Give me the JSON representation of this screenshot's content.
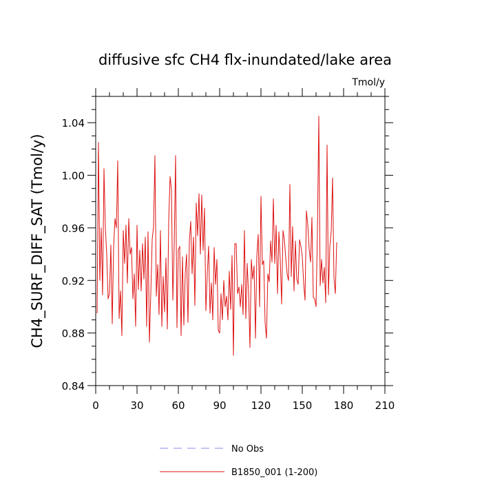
{
  "chart_data": {
    "type": "line",
    "title": "diffusive sfc CH4 flx-inundated/lake area",
    "units_label": "Tmol/y",
    "ylabel": "CH4_SURF_DIFF_SAT  (Tmol/y)",
    "xlabel": "",
    "xlim": [
      0,
      210
    ],
    "ylim": [
      0.84,
      1.06
    ],
    "x_ticks": [
      0,
      30,
      60,
      90,
      120,
      150,
      180,
      210
    ],
    "x_tick_labels": [
      "0",
      "30",
      "60",
      "90",
      "120",
      "150",
      "180",
      "210"
    ],
    "y_ticks": [
      0.84,
      0.88,
      0.92,
      0.96,
      1.0,
      1.04
    ],
    "y_tick_labels": [
      "0.84",
      "0.88",
      "0.92",
      "0.96",
      "1.00",
      "1.04"
    ],
    "grid": false,
    "legend": {
      "placement": "bottom",
      "entries": [
        {
          "label": "No Obs",
          "color": "#8888ee",
          "dash": true
        },
        {
          "label": "B1850_001 (1-200)",
          "color": "#dd1111",
          "dash": false
        }
      ]
    },
    "series": [
      {
        "name": "B1850_001 (1-200)",
        "color": "#dd1111",
        "x_start": 1,
        "values": [
          0.895,
          1.025,
          0.92,
          0.96,
          0.909,
          1.005,
          0.96,
          0.94,
          0.906,
          0.91,
          0.947,
          0.887,
          0.945,
          0.967,
          0.96,
          1.011,
          0.891,
          0.912,
          0.878,
          0.958,
          0.933,
          0.962,
          0.918,
          0.967,
          0.94,
          0.945,
          0.906,
          0.925,
          0.885,
          0.962,
          0.913,
          0.943,
          0.912,
          0.948,
          0.921,
          0.953,
          0.885,
          0.957,
          0.873,
          0.91,
          0.951,
          0.961,
          1.015,
          0.908,
          0.932,
          0.894,
          0.958,
          0.885,
          0.923,
          0.896,
          0.937,
          0.883,
          0.965,
          0.999,
          0.989,
          0.905,
          0.947,
          1.015,
          0.884,
          0.943,
          0.946,
          0.878,
          0.938,
          0.886,
          0.925,
          0.94,
          0.888,
          0.95,
          0.965,
          0.925,
          0.953,
          0.901,
          0.979,
          0.954,
          0.986,
          0.94,
          0.985,
          0.943,
          0.975,
          0.897,
          0.925,
          0.946,
          0.895,
          0.918,
          0.89,
          0.945,
          0.917,
          0.936,
          0.882,
          0.88,
          0.91,
          0.89,
          0.92,
          0.9,
          0.908,
          0.89,
          0.927,
          0.898,
          0.939,
          0.863,
          0.948,
          0.948,
          0.91,
          0.915,
          0.9,
          0.917,
          0.894,
          0.958,
          0.891,
          0.933,
          0.91,
          0.869,
          0.936,
          0.921,
          0.931,
          0.876,
          0.939,
          0.955,
          0.9,
          0.984,
          0.932,
          0.935,
          0.888,
          0.876,
          0.925,
          0.919,
          0.95,
          0.934,
          0.982,
          0.933,
          0.962,
          0.91,
          0.957,
          0.936,
          0.902,
          0.958,
          0.951,
          0.937,
          0.925,
          0.92,
          0.993,
          0.923,
          0.961,
          0.912,
          0.95,
          0.921,
          0.917,
          0.951,
          0.946,
          0.938,
          0.918,
          0.905,
          0.973,
          0.962,
          0.944,
          0.934,
          0.968,
          0.907,
          0.906,
          0.9,
          0.957,
          1.045,
          0.916,
          0.936,
          0.918,
          0.93,
          0.903,
          1.023,
          0.909,
          0.946,
          0.957,
          0.998,
          0.922,
          0.91,
          0.949
        ]
      },
      {
        "name": "No Obs",
        "color": "#8888ee",
        "values": []
      }
    ]
  }
}
